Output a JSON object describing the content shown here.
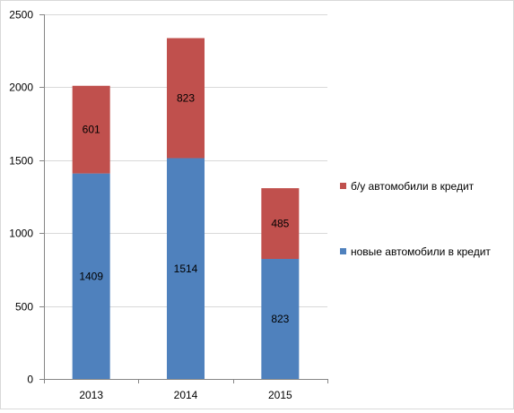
{
  "chart_data": {
    "type": "bar",
    "stacked": true,
    "categories": [
      "2013",
      "2014",
      "2015"
    ],
    "series": [
      {
        "name": "новые автомобили в кредит",
        "values": [
          1409,
          1514,
          823
        ],
        "color": "#4f81bd"
      },
      {
        "name": "б/у автомобили в кредит",
        "values": [
          601,
          823,
          485
        ],
        "color": "#c0504d"
      }
    ],
    "data_labels": [
      [
        "1409",
        "1514",
        "823"
      ],
      [
        "601",
        "823",
        "485"
      ]
    ],
    "ylim": [
      0,
      2500
    ],
    "yticks": [
      "0",
      "500",
      "1000",
      "1500",
      "2000",
      "2500"
    ],
    "grid": true,
    "legend_position": "right"
  }
}
